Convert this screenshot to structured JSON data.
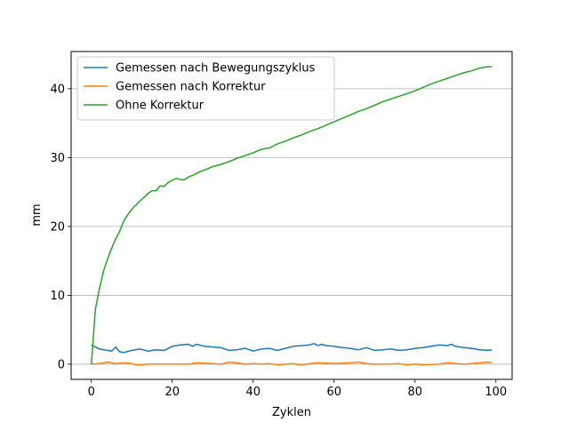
{
  "chart_data": {
    "type": "line",
    "title": "",
    "xlabel": "Zyklen",
    "ylabel": "mm",
    "xlim": [
      -5,
      104
    ],
    "ylim": [
      -2.2,
      45.4
    ],
    "xticks": [
      0,
      20,
      40,
      60,
      80,
      100
    ],
    "yticks": [
      0,
      10,
      20,
      30,
      40
    ],
    "grid": "horizontal",
    "legend_position": "top-left",
    "series": [
      {
        "name": "Gemessen nach Bewegungszyklus",
        "color": "#1f77b4",
        "x": [
          0,
          2,
          4,
          5,
          6,
          7,
          8,
          10,
          12,
          14,
          16,
          18,
          20,
          22,
          24,
          25,
          26,
          28,
          30,
          32,
          34,
          36,
          38,
          40,
          42,
          44,
          46,
          48,
          50,
          52,
          54,
          55,
          56,
          57,
          58,
          60,
          62,
          64,
          66,
          68,
          70,
          72,
          74,
          76,
          78,
          80,
          82,
          84,
          86,
          88,
          89,
          90,
          92,
          94,
          96,
          98,
          99
        ],
        "y": [
          2.8,
          2.2,
          2.0,
          1.9,
          2.5,
          1.8,
          1.7,
          2.0,
          2.2,
          1.9,
          2.1,
          2.0,
          2.6,
          2.8,
          2.9,
          2.6,
          2.9,
          2.6,
          2.5,
          2.4,
          2.0,
          2.1,
          2.3,
          1.9,
          2.2,
          2.3,
          2.0,
          2.3,
          2.6,
          2.7,
          2.8,
          3.0,
          2.7,
          2.9,
          2.7,
          2.6,
          2.4,
          2.3,
          2.1,
          2.4,
          2.0,
          2.1,
          2.2,
          2.0,
          2.1,
          2.3,
          2.4,
          2.6,
          2.8,
          2.7,
          2.9,
          2.6,
          2.4,
          2.3,
          2.1,
          2.0,
          2.1
        ]
      },
      {
        "name": "Gemessen nach Korrektur",
        "color": "#ff7f0e",
        "x": [
          0,
          2,
          4,
          5,
          6,
          8,
          10,
          11,
          12,
          14,
          16,
          18,
          20,
          24,
          26,
          30,
          32,
          34,
          36,
          38,
          40,
          42,
          44,
          46,
          48,
          50,
          52,
          54,
          56,
          60,
          64,
          66,
          68,
          70,
          74,
          76,
          78,
          80,
          82,
          86,
          88,
          90,
          92,
          94,
          96,
          98,
          99
        ],
        "y": [
          0.0,
          0.1,
          0.3,
          0.2,
          0.1,
          0.2,
          0.1,
          -0.1,
          -0.1,
          0.0,
          0.0,
          0.0,
          0.0,
          0.0,
          0.2,
          0.1,
          0.0,
          0.3,
          0.2,
          0.0,
          0.1,
          0.0,
          0.1,
          -0.1,
          0.0,
          0.1,
          -0.1,
          0.1,
          0.2,
          0.1,
          0.2,
          0.3,
          0.1,
          0.0,
          0.0,
          0.1,
          -0.1,
          0.0,
          -0.1,
          0.0,
          0.2,
          0.1,
          0.0,
          0.1,
          0.2,
          0.3,
          0.2
        ]
      },
      {
        "name": "Ohne Korrektur",
        "color": "#2ca02c",
        "x": [
          0,
          1,
          2,
          3,
          4,
          5,
          6,
          7,
          8,
          9,
          10,
          11,
          12,
          13,
          14,
          15,
          16,
          17,
          18,
          19,
          20,
          21,
          22,
          23,
          24,
          25,
          26,
          27,
          28,
          30,
          32,
          34,
          36,
          38,
          40,
          42,
          44,
          46,
          48,
          50,
          52,
          54,
          56,
          58,
          60,
          62,
          64,
          66,
          68,
          70,
          72,
          74,
          76,
          78,
          80,
          82,
          84,
          86,
          88,
          90,
          92,
          94,
          96,
          98,
          99
        ],
        "y": [
          0.0,
          8.0,
          11.0,
          13.5,
          15.3,
          16.8,
          18.2,
          19.3,
          20.8,
          21.7,
          22.5,
          23.1,
          23.7,
          24.2,
          24.8,
          25.2,
          25.2,
          25.9,
          25.8,
          26.4,
          26.7,
          27.0,
          26.8,
          26.8,
          27.2,
          27.4,
          27.7,
          28.0,
          28.2,
          28.7,
          29.0,
          29.4,
          29.9,
          30.3,
          30.7,
          31.2,
          31.4,
          32.0,
          32.4,
          32.9,
          33.3,
          33.8,
          34.2,
          34.7,
          35.2,
          35.7,
          36.2,
          36.7,
          37.1,
          37.6,
          38.1,
          38.5,
          38.9,
          39.3,
          39.7,
          40.2,
          40.7,
          41.1,
          41.5,
          41.9,
          42.3,
          42.6,
          43.0,
          43.2,
          43.2
        ]
      }
    ]
  }
}
